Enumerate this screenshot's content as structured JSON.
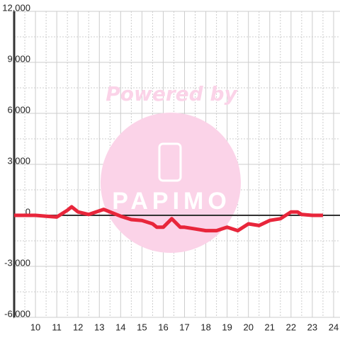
{
  "chart_data": {
    "type": "line",
    "x": [
      9,
      9.5,
      10,
      10.5,
      11,
      11.5,
      11.7,
      12,
      12.5,
      13.2,
      13.5,
      14,
      14.5,
      15,
      15.5,
      15.7,
      16,
      16.4,
      16.8,
      17,
      17.5,
      18,
      18.5,
      19,
      19.5,
      20,
      20.5,
      21,
      21.5,
      22,
      22.3,
      22.5,
      23,
      23.5
    ],
    "series": [
      {
        "color": "#e8263b",
        "values": [
          0,
          0,
          0,
          -50,
          -100,
          300,
          500,
          200,
          50,
          350,
          200,
          -50,
          -250,
          -300,
          -500,
          -700,
          -700,
          -200,
          -700,
          -700,
          -800,
          -900,
          -900,
          -700,
          -900,
          -500,
          -600,
          -300,
          -200,
          200,
          200,
          50,
          0,
          0
        ]
      }
    ],
    "xlim": [
      9,
      24.3
    ],
    "xticks": [
      10,
      11,
      12,
      13,
      14,
      15,
      16,
      17,
      18,
      19,
      20,
      21,
      22,
      23,
      24
    ],
    "ylim": [
      -6000,
      12000
    ],
    "yticks": [
      {
        "value": -6000,
        "label": "-6,000"
      },
      {
        "value": -3000,
        "label": "-3,000"
      },
      0,
      {
        "value": 3000,
        "label": "3,000"
      },
      {
        "value": 6000,
        "label": "6,000"
      },
      {
        "value": 9000,
        "label": "9,000"
      },
      {
        "value": 12000,
        "label": "12,000"
      }
    ],
    "grid": true
  },
  "watermark": {
    "text": "Powered by",
    "logo": "PAPIMO"
  }
}
